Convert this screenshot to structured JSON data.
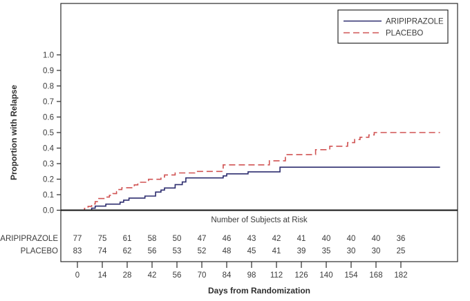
{
  "chart_data": {
    "type": "line",
    "variant": "kaplan_meier_step",
    "title": "",
    "xlabel": "Days from Randomization",
    "ylabel": "Proportion with Relapse",
    "x_ticks": [
      0,
      14,
      28,
      42,
      56,
      70,
      84,
      98,
      112,
      126,
      140,
      154,
      168,
      182
    ],
    "y_tick_labels": [
      "0.0",
      "0.1",
      "0.2",
      "0.3",
      "0.4",
      "0.5",
      "0.6",
      "0.7",
      "0.8",
      "0.9",
      "1.0"
    ],
    "ylim": [
      0.0,
      1.0
    ],
    "grid": "off",
    "legend_position": "top-right",
    "series": [
      {
        "name": "ARIPIPRAZOLE",
        "color": "#2c2c6e",
        "line_style": "solid",
        "end_day": 204,
        "steps": [
          [
            0,
            0.0
          ],
          [
            8,
            0.013
          ],
          [
            10,
            0.026
          ],
          [
            16,
            0.039
          ],
          [
            24,
            0.052
          ],
          [
            26,
            0.065
          ],
          [
            29,
            0.078
          ],
          [
            38,
            0.091
          ],
          [
            44,
            0.117
          ],
          [
            47,
            0.13
          ],
          [
            49,
            0.143
          ],
          [
            55,
            0.165
          ],
          [
            59,
            0.182
          ],
          [
            61,
            0.208
          ],
          [
            82,
            0.221
          ],
          [
            84,
            0.234
          ],
          [
            96,
            0.247
          ],
          [
            114,
            0.277
          ]
        ]
      },
      {
        "name": "PLACEBO",
        "color": "#d05252",
        "line_style": "dashed",
        "end_day": 204,
        "steps": [
          [
            2,
            0.0
          ],
          [
            4,
            0.012
          ],
          [
            6,
            0.025
          ],
          [
            8,
            0.04
          ],
          [
            10,
            0.055
          ],
          [
            12,
            0.075
          ],
          [
            16,
            0.085
          ],
          [
            18,
            0.096
          ],
          [
            20,
            0.107
          ],
          [
            22,
            0.12
          ],
          [
            23,
            0.133
          ],
          [
            25,
            0.145
          ],
          [
            32,
            0.163
          ],
          [
            34,
            0.18
          ],
          [
            40,
            0.199
          ],
          [
            47,
            0.214
          ],
          [
            49,
            0.227
          ],
          [
            55,
            0.24
          ],
          [
            66,
            0.25
          ],
          [
            82,
            0.292
          ],
          [
            108,
            0.318
          ],
          [
            117,
            0.358
          ],
          [
            134,
            0.39
          ],
          [
            142,
            0.412
          ],
          [
            152,
            0.435
          ],
          [
            156,
            0.455
          ],
          [
            159,
            0.47
          ],
          [
            164,
            0.485
          ],
          [
            167,
            0.5
          ]
        ]
      }
    ],
    "at_risk_table": {
      "title": "Number of Subjects at Risk",
      "days": [
        0,
        14,
        28,
        42,
        56,
        70,
        84,
        98,
        112,
        126,
        140,
        154,
        168,
        182
      ],
      "rows": [
        {
          "label": "ARIPIPRAZOLE",
          "values": [
            77,
            75,
            61,
            58,
            50,
            47,
            46,
            43,
            42,
            41,
            40,
            40,
            40,
            36
          ]
        },
        {
          "label": "PLACEBO",
          "values": [
            83,
            74,
            62,
            56,
            53,
            52,
            48,
            45,
            41,
            39,
            35,
            30,
            30,
            25
          ]
        }
      ]
    }
  },
  "colors": {
    "axis": "#2a2a2a",
    "baseline": "#111111",
    "text": "#3b3b3b",
    "aripiprazole": "#2c2c6e",
    "placebo": "#d05252"
  }
}
